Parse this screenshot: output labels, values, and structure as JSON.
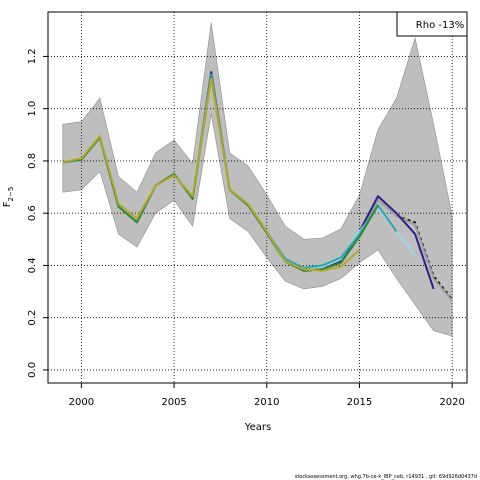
{
  "chart_data": {
    "type": "line",
    "xlabel": "Years",
    "ylabel": "F",
    "ylabel_sub": "2−5",
    "legend_text": "Rho -13%",
    "footer": "stockassessment.org, whg.7b-ce-k_IBP_ceb, r14931 , git: 69d926d0437d",
    "xlim": [
      1998.2,
      2020.8
    ],
    "ylim": [
      -0.05,
      1.37
    ],
    "x_ticks": [
      2000,
      2005,
      2010,
      2015,
      2020
    ],
    "y_ticks": [
      0.0,
      0.2,
      0.4,
      0.6,
      0.8,
      1.0,
      1.2
    ],
    "y_tick_labels": [
      "0.0",
      "0.2",
      "0.4",
      "0.6",
      "0.8",
      "1.0",
      "1.2"
    ],
    "grid": true,
    "legend_position": "top-right",
    "band": {
      "x": [
        1999,
        2000,
        2001,
        2002,
        2003,
        2004,
        2005,
        2006,
        2007,
        2008,
        2009,
        2010,
        2011,
        2012,
        2013,
        2014,
        2015,
        2016,
        2017,
        2018,
        2019,
        2020
      ],
      "upper": [
        0.94,
        0.95,
        1.04,
        0.74,
        0.68,
        0.83,
        0.88,
        0.79,
        1.33,
        0.83,
        0.78,
        0.67,
        0.55,
        0.5,
        0.505,
        0.54,
        0.67,
        0.92,
        1.04,
        1.27,
        0.94,
        0.59
      ],
      "lower": [
        0.68,
        0.69,
        0.76,
        0.52,
        0.47,
        0.6,
        0.65,
        0.55,
        0.98,
        0.58,
        0.53,
        0.43,
        0.34,
        0.31,
        0.32,
        0.35,
        0.41,
        0.46,
        0.35,
        0.25,
        0.15,
        0.13
      ]
    },
    "series": [
      {
        "color": "#000000",
        "dashed": true,
        "values": [
          [
            1999,
            0.795
          ],
          [
            2000,
            0.805
          ],
          [
            2001,
            0.89
          ],
          [
            2002,
            0.625
          ],
          [
            2003,
            0.565
          ],
          [
            2004,
            0.705
          ],
          [
            2005,
            0.75
          ],
          [
            2006,
            0.655
          ],
          [
            2007,
            1.14
          ],
          [
            2008,
            0.69
          ],
          [
            2009,
            0.63
          ],
          [
            2010,
            0.525
          ],
          [
            2011,
            0.415
          ],
          [
            2012,
            0.38
          ],
          [
            2013,
            0.385
          ],
          [
            2014,
            0.41
          ],
          [
            2015,
            0.52
          ],
          [
            2016,
            0.65
          ],
          [
            2017,
            0.59
          ],
          [
            2018,
            0.565
          ],
          [
            2019,
            0.36
          ],
          [
            2020,
            0.27
          ]
        ]
      },
      {
        "color": "#9e9e9e",
        "dashed": false,
        "values": [
          [
            1999,
            0.795
          ],
          [
            2000,
            0.805
          ],
          [
            2001,
            0.89
          ],
          [
            2002,
            0.625
          ],
          [
            2003,
            0.565
          ],
          [
            2004,
            0.705
          ],
          [
            2005,
            0.75
          ],
          [
            2006,
            0.655
          ],
          [
            2007,
            1.14
          ],
          [
            2008,
            0.69
          ],
          [
            2009,
            0.63
          ],
          [
            2010,
            0.525
          ],
          [
            2011,
            0.415
          ],
          [
            2012,
            0.38
          ],
          [
            2013,
            0.385
          ],
          [
            2014,
            0.41
          ],
          [
            2015,
            0.52
          ],
          [
            2016,
            0.65
          ],
          [
            2017,
            0.59
          ],
          [
            2018,
            0.555
          ],
          [
            2019,
            0.35
          ],
          [
            2020,
            0.265
          ]
        ]
      },
      {
        "color": "#2c1f8a",
        "dashed": false,
        "values": [
          [
            1999,
            0.795
          ],
          [
            2000,
            0.805
          ],
          [
            2001,
            0.89
          ],
          [
            2002,
            0.625
          ],
          [
            2003,
            0.565
          ],
          [
            2004,
            0.705
          ],
          [
            2005,
            0.75
          ],
          [
            2006,
            0.655
          ],
          [
            2007,
            1.14
          ],
          [
            2008,
            0.69
          ],
          [
            2009,
            0.63
          ],
          [
            2010,
            0.525
          ],
          [
            2011,
            0.415
          ],
          [
            2012,
            0.38
          ],
          [
            2013,
            0.385
          ],
          [
            2014,
            0.415
          ],
          [
            2015,
            0.53
          ],
          [
            2016,
            0.665
          ],
          [
            2017,
            0.6
          ],
          [
            2018,
            0.52
          ],
          [
            2019,
            0.31
          ]
        ]
      },
      {
        "color": "#9fd8ec",
        "dashed": false,
        "values": [
          [
            1999,
            0.795
          ],
          [
            2000,
            0.805
          ],
          [
            2001,
            0.89
          ],
          [
            2002,
            0.625
          ],
          [
            2003,
            0.565
          ],
          [
            2004,
            0.705
          ],
          [
            2005,
            0.75
          ],
          [
            2006,
            0.655
          ],
          [
            2007,
            1.13
          ],
          [
            2008,
            0.69
          ],
          [
            2009,
            0.63
          ],
          [
            2010,
            0.525
          ],
          [
            2011,
            0.42
          ],
          [
            2012,
            0.39
          ],
          [
            2013,
            0.395
          ],
          [
            2014,
            0.425
          ],
          [
            2015,
            0.53
          ],
          [
            2016,
            0.62
          ],
          [
            2017,
            0.53
          ],
          [
            2018,
            0.44
          ]
        ]
      },
      {
        "color": "#2aa8b2",
        "dashed": false,
        "values": [
          [
            1999,
            0.795
          ],
          [
            2000,
            0.805
          ],
          [
            2001,
            0.89
          ],
          [
            2002,
            0.625
          ],
          [
            2003,
            0.565
          ],
          [
            2004,
            0.705
          ],
          [
            2005,
            0.75
          ],
          [
            2006,
            0.655
          ],
          [
            2007,
            1.13
          ],
          [
            2008,
            0.69
          ],
          [
            2009,
            0.63
          ],
          [
            2010,
            0.53
          ],
          [
            2011,
            0.425
          ],
          [
            2012,
            0.39
          ],
          [
            2013,
            0.4
          ],
          [
            2014,
            0.43
          ],
          [
            2015,
            0.52
          ],
          [
            2016,
            0.63
          ],
          [
            2017,
            0.53
          ]
        ]
      },
      {
        "color": "#2e8b2e",
        "dashed": false,
        "values": [
          [
            1999,
            0.795
          ],
          [
            2000,
            0.805
          ],
          [
            2001,
            0.89
          ],
          [
            2002,
            0.625
          ],
          [
            2003,
            0.565
          ],
          [
            2004,
            0.705
          ],
          [
            2005,
            0.75
          ],
          [
            2006,
            0.655
          ],
          [
            2007,
            1.12
          ],
          [
            2008,
            0.69
          ],
          [
            2009,
            0.63
          ],
          [
            2010,
            0.525
          ],
          [
            2011,
            0.415
          ],
          [
            2012,
            0.38
          ],
          [
            2013,
            0.385
          ],
          [
            2014,
            0.41
          ],
          [
            2015,
            0.51
          ],
          [
            2016,
            0.63
          ]
        ]
      },
      {
        "color": "#b5a829",
        "dashed": false,
        "values": [
          [
            1999,
            0.795
          ],
          [
            2000,
            0.81
          ],
          [
            2001,
            0.895
          ],
          [
            2002,
            0.635
          ],
          [
            2003,
            0.58
          ],
          [
            2004,
            0.705
          ],
          [
            2005,
            0.745
          ],
          [
            2006,
            0.665
          ],
          [
            2007,
            1.115
          ],
          [
            2008,
            0.69
          ],
          [
            2009,
            0.635
          ],
          [
            2010,
            0.53
          ],
          [
            2011,
            0.415
          ],
          [
            2012,
            0.385
          ],
          [
            2013,
            0.38
          ],
          [
            2014,
            0.395
          ],
          [
            2015,
            0.46
          ]
        ]
      }
    ]
  }
}
